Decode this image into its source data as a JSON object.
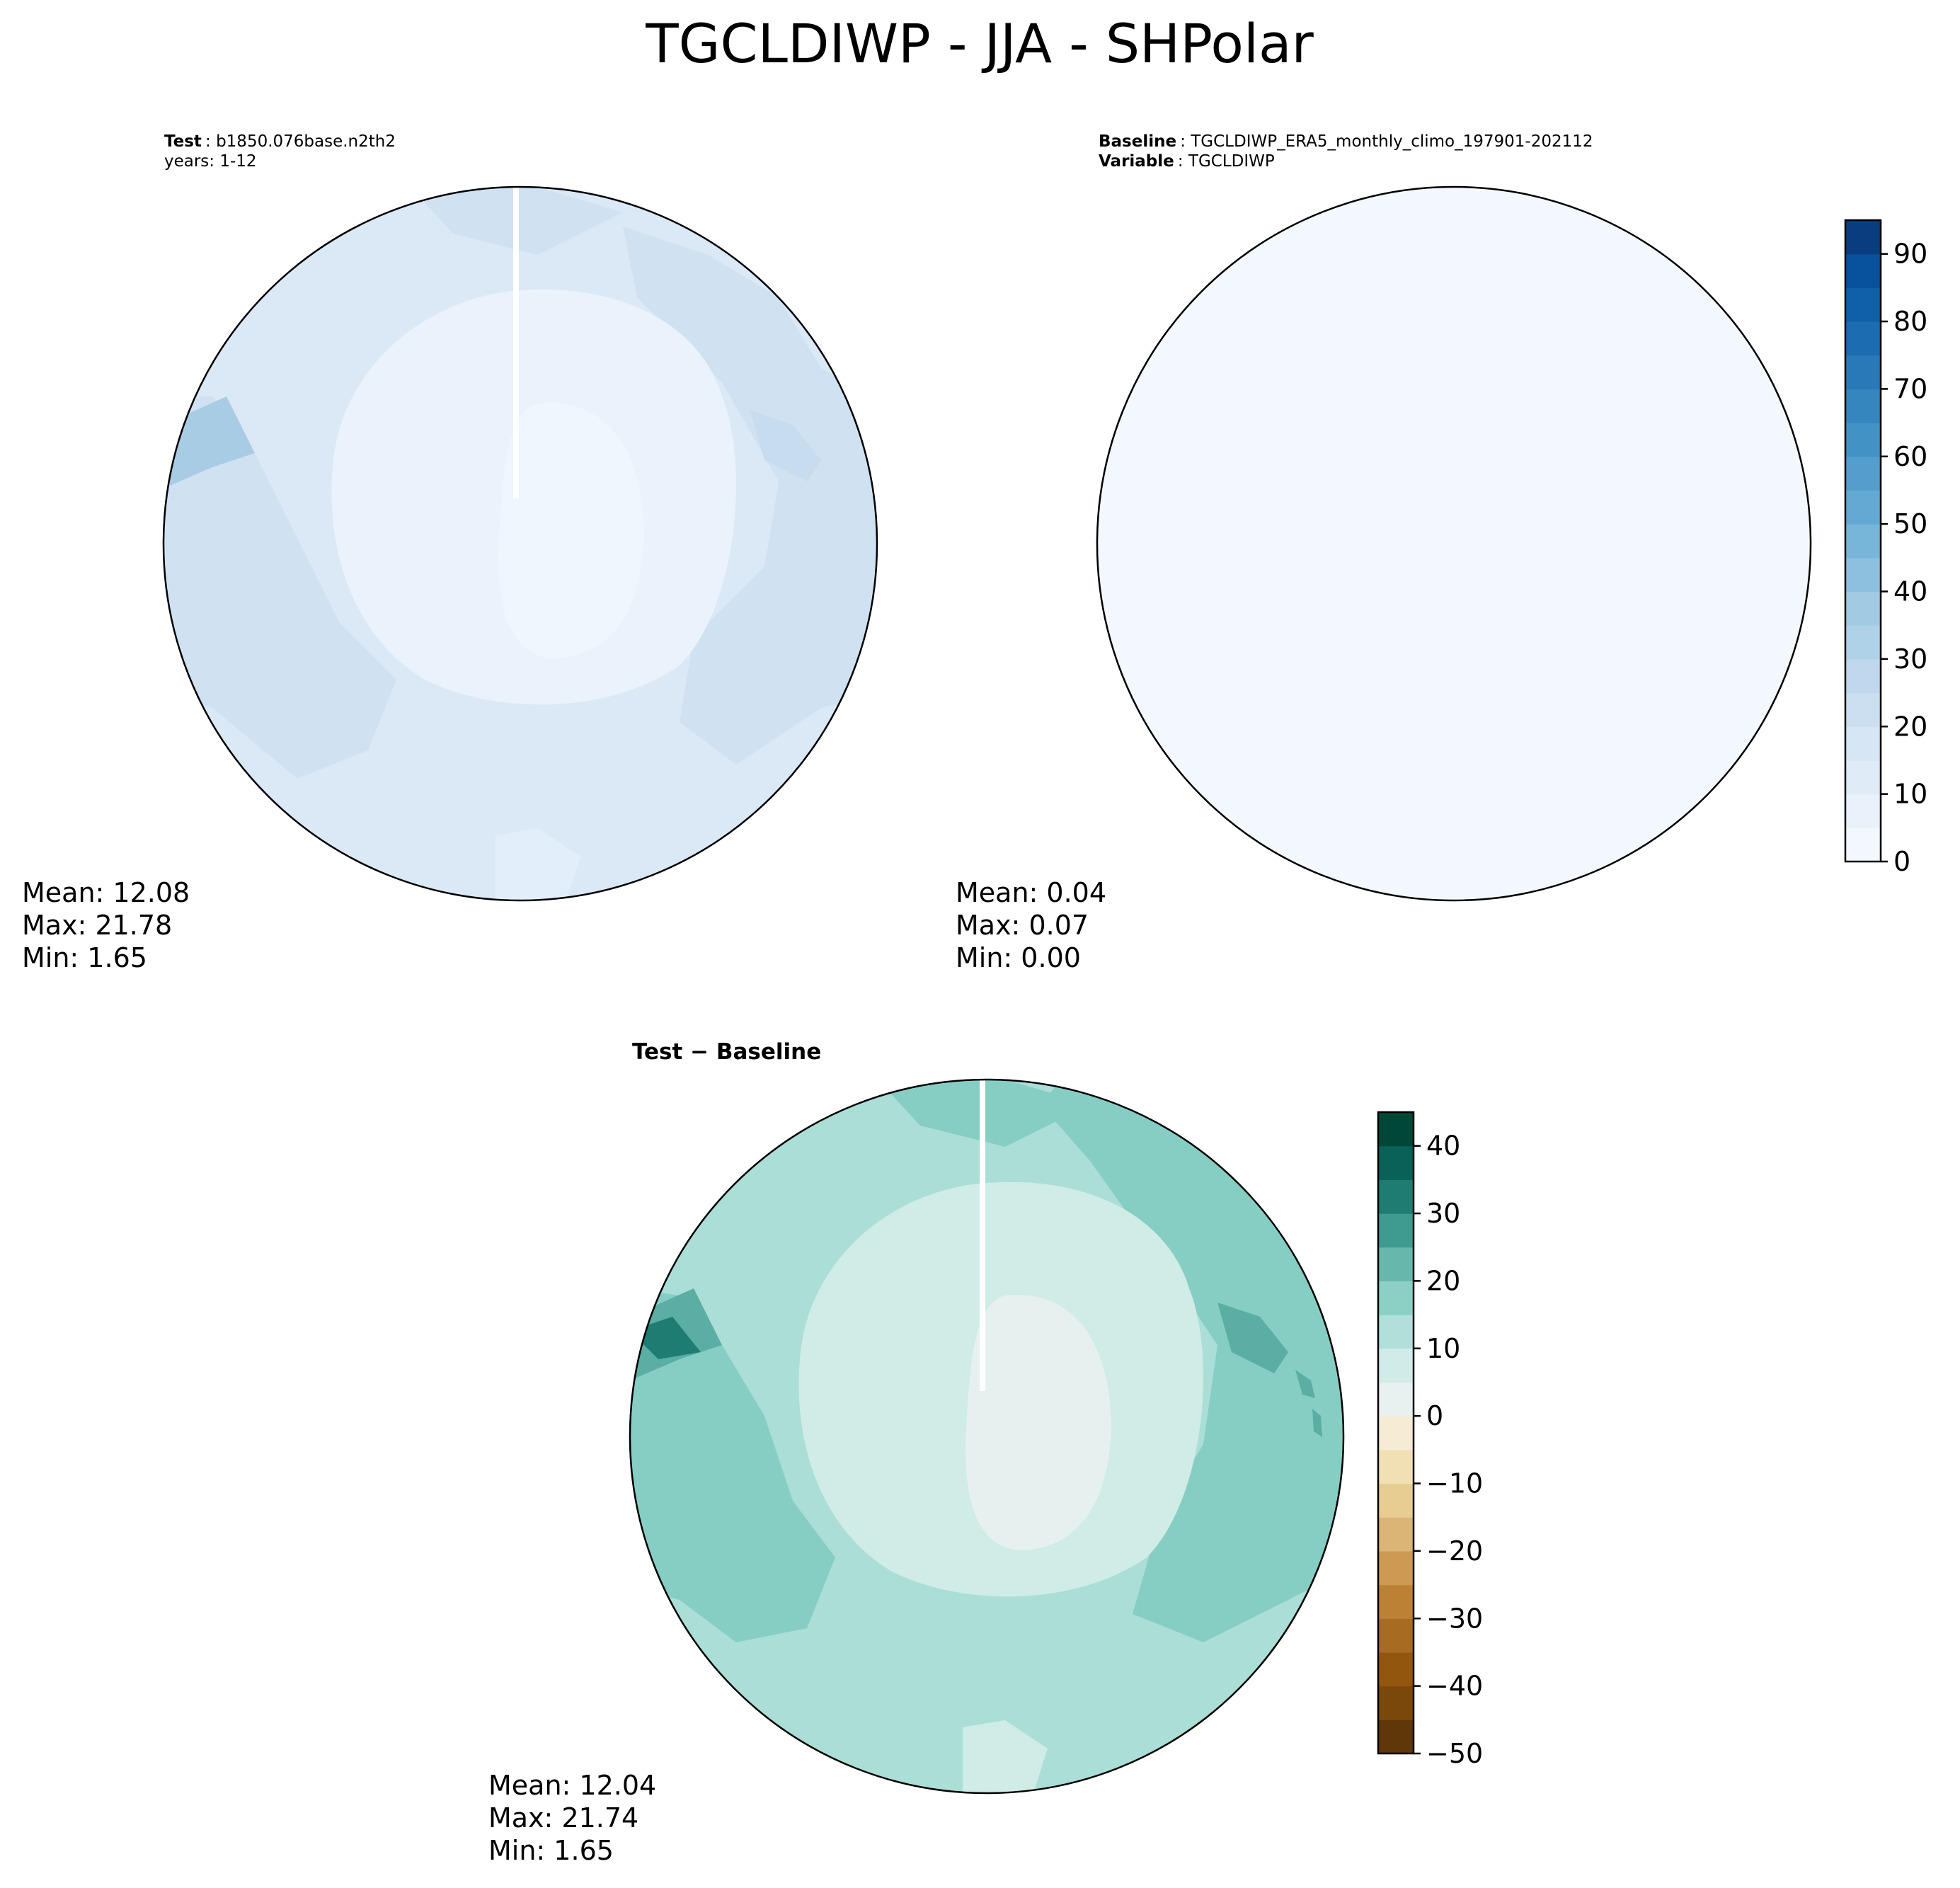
{
  "figure": {
    "title": "TGCLDIWP - JJA - SHPolar"
  },
  "panels": [
    {
      "id": "test",
      "header": [
        {
          "label": "Test",
          "value": ": b1850.076base.n2th2"
        },
        {
          "label": "",
          "value": "years: 1-12"
        }
      ],
      "stats": {
        "mean": "Mean: 12.08",
        "max": "Max: 21.78",
        "min": "Min:  1.65"
      }
    },
    {
      "id": "baseline",
      "header": [
        {
          "label": "Baseline",
          "value": ": TGCLDIWP_ERA5_monthly_climo_197901-202112"
        },
        {
          "label": "Variable",
          "value": ": TGCLDIWP"
        }
      ],
      "stats": {
        "mean": "Mean:  0.04",
        "max": "Max:  0.07",
        "min": "Min:  0.00"
      }
    },
    {
      "id": "difference",
      "title": "Test − Baseline",
      "stats": {
        "mean": "Mean: 12.04",
        "max": "Max: 21.74",
        "min": "Min:  1.65"
      }
    }
  ],
  "chart_data": [
    {
      "type": "heatmap",
      "panel": "test",
      "projection": "south-polar-stereographic",
      "colormap": "Blues",
      "colorbar": "shared-with-baseline",
      "stats": {
        "mean": 12.08,
        "max": 21.78,
        "min": 1.65
      }
    },
    {
      "type": "heatmap",
      "panel": "baseline",
      "projection": "south-polar-stereographic",
      "colormap": "Blues",
      "stats": {
        "mean": 0.04,
        "max": 0.07,
        "min": 0.0
      },
      "colorbar": {
        "range": [
          0,
          95
        ],
        "levels": [
          0,
          5,
          10,
          15,
          20,
          25,
          30,
          35,
          40,
          45,
          50,
          55,
          60,
          65,
          70,
          75,
          80,
          85,
          90,
          95
        ],
        "ticks": [
          "0",
          "10",
          "20",
          "30",
          "40",
          "50",
          "60",
          "70",
          "80",
          "90"
        ],
        "colors": [
          "#f3f8fe",
          "#e9f2fb",
          "#dfebf7",
          "#d6e6f4",
          "#ccdff1",
          "#bfd8ed",
          "#b0d2e8",
          "#a0cbe2",
          "#8cc0de",
          "#77b5d9",
          "#64a9d3",
          "#539ecd",
          "#4292c6",
          "#3585bf",
          "#2979b9",
          "#1c6cb1",
          "#1060a8",
          "#08519c",
          "#083d7f"
        ]
      }
    },
    {
      "type": "heatmap",
      "panel": "difference",
      "projection": "south-polar-stereographic",
      "colormap": "BrBG",
      "stats": {
        "mean": 12.04,
        "max": 21.74,
        "min": 1.65
      },
      "colorbar": {
        "range": [
          -50,
          45
        ],
        "levels": [
          -50,
          -45,
          -40,
          -35,
          -30,
          -25,
          -20,
          -15,
          -10,
          -5,
          0,
          5,
          10,
          15,
          20,
          25,
          30,
          35,
          40,
          45
        ],
        "ticks": [
          "−50",
          "−40",
          "−30",
          "−20",
          "−10",
          "0",
          "10",
          "20",
          "30",
          "40"
        ],
        "colors": [
          "#5f3708",
          "#7a480b",
          "#92560f",
          "#a86b22",
          "#bc8134",
          "#cc9a52",
          "#dbb575",
          "#e8cd93",
          "#f2e0b5",
          "#f6ecd6",
          "#e8f1f0",
          "#d1ece8",
          "#b0e0d9",
          "#8ccfc4",
          "#67b7ac",
          "#3f9a90",
          "#1f7c73",
          "#0a6157",
          "#014737"
        ]
      }
    }
  ],
  "colors": {
    "ocean_test": "#dbe9f6",
    "ocean_test_dark": "#d0e1f2",
    "ice_test": "#eaf2fb",
    "interior_test": "#f0f6fd",
    "baseline_fill": "#f3f8fe",
    "diff_ocean": "#abded6",
    "diff_ocean_dark": "#86cec3",
    "diff_ice": "#cfece7",
    "diff_interior": "#e6f1ef",
    "diff_strong": "#5aaea3"
  }
}
